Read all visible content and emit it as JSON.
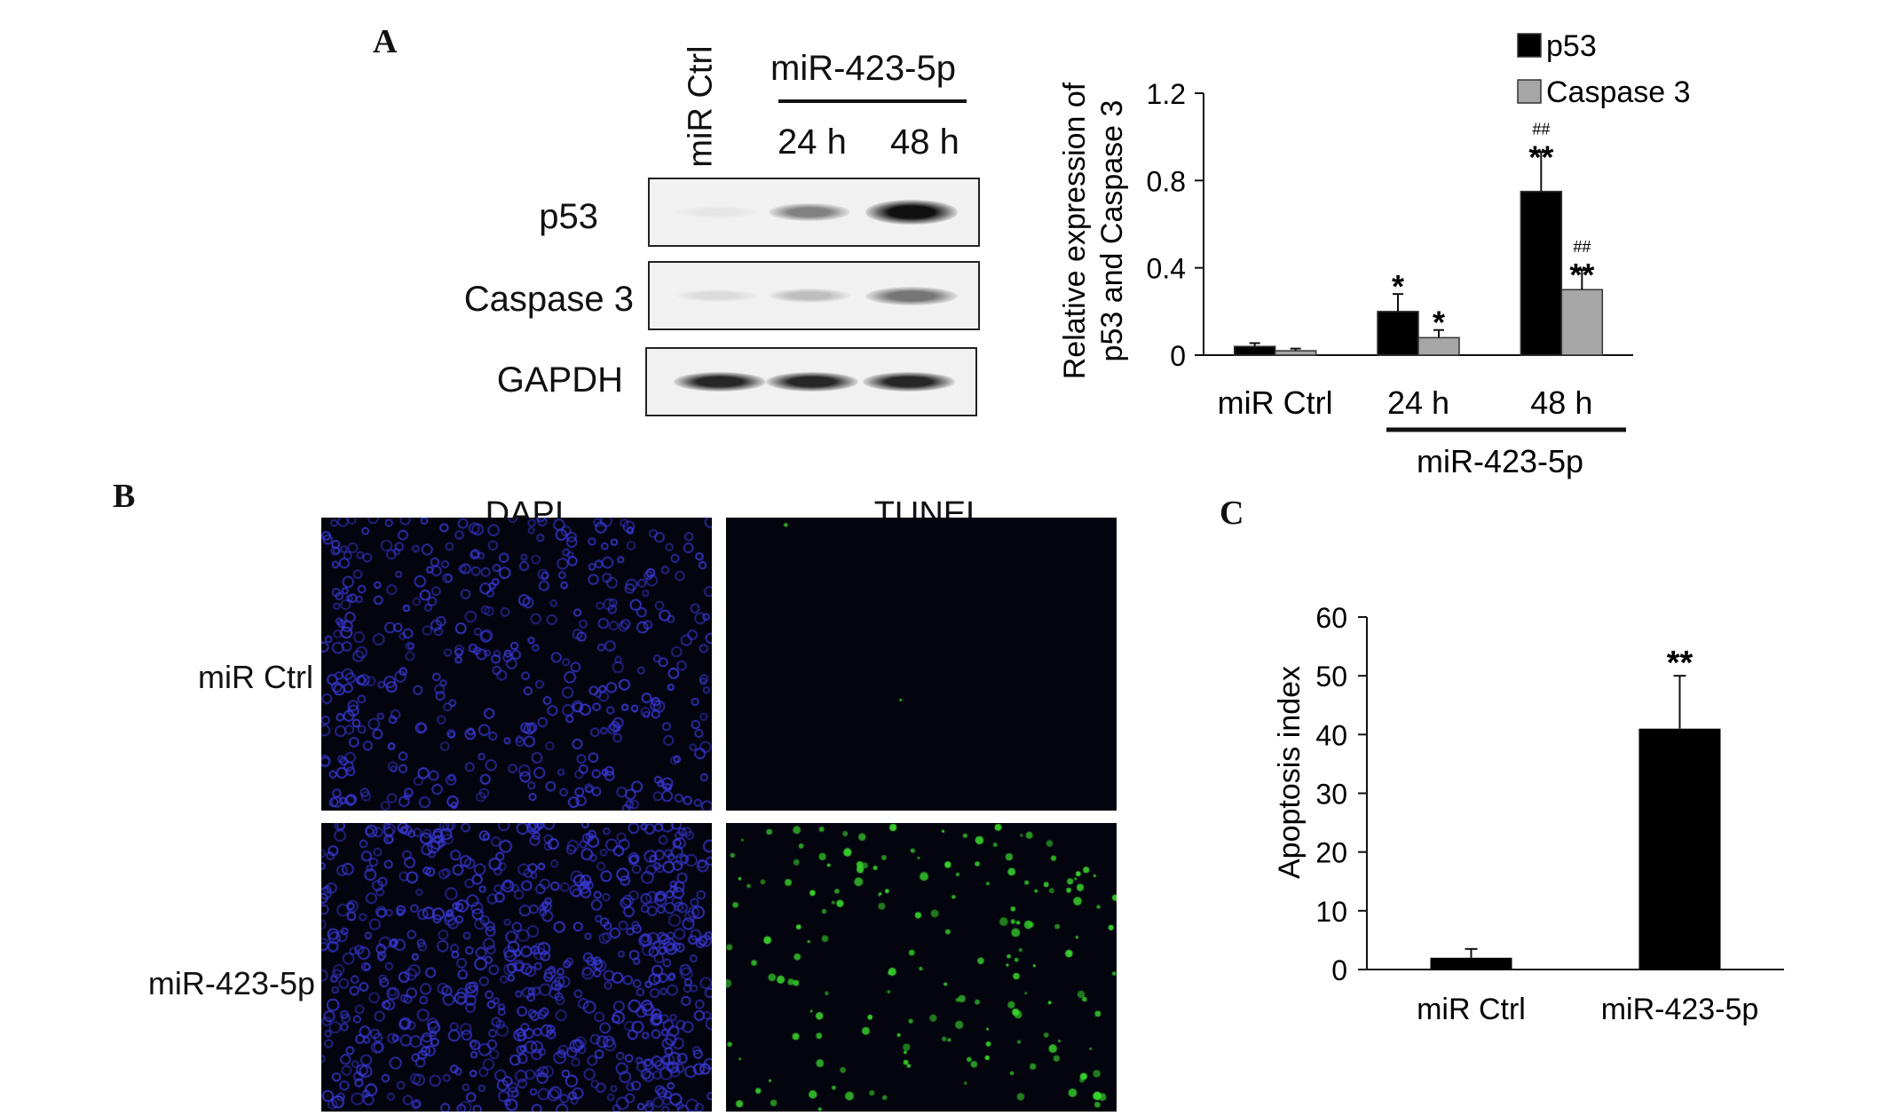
{
  "panels": {
    "a": {
      "letter": "A",
      "blot": {
        "lane_ctrl": "miR Ctrl",
        "group_label": "miR-423-5p",
        "lane_24h": "24 h",
        "lane_48h": "48 h",
        "rows": [
          {
            "label": "p53",
            "intensities": [
              0.0,
              0.45,
              0.95
            ]
          },
          {
            "label": "Caspase 3",
            "intensities": [
              0.05,
              0.18,
              0.5
            ]
          },
          {
            "label": "GAPDH",
            "intensities": [
              0.85,
              0.85,
              0.85
            ]
          }
        ]
      }
    },
    "b": {
      "letter": "B",
      "col_dapi": "DAPI",
      "col_tunel": "TUNEL",
      "row_ctrl": "miR Ctrl",
      "row_mir": "miR-423-5p",
      "colors": {
        "dapi": "#3a3ad8",
        "tunel": "#39d62e",
        "background": "#04040e"
      }
    },
    "c": {
      "letter": "C"
    }
  },
  "chart_data": [
    {
      "type": "bar",
      "categories": [
        "miR Ctrl",
        "24 h",
        "48 h"
      ],
      "group_label": "miR-423-5p",
      "ylabel": "Relative expression of p53 and Caspase 3",
      "ylim": [
        0,
        1.2
      ],
      "yticks": [
        "0",
        "0.4",
        "0.8",
        "1.2"
      ],
      "legend": "top-right",
      "series": [
        {
          "name": "p53",
          "color": "#000000",
          "values": [
            0.04,
            0.2,
            0.75
          ],
          "errors": [
            0.015,
            0.08,
            0.18
          ],
          "annotations": [
            "",
            "*",
            "**"
          ],
          "hash": [
            "",
            "",
            "##"
          ]
        },
        {
          "name": "Caspase 3",
          "color": "#a6a6a6",
          "values": [
            0.02,
            0.08,
            0.3
          ],
          "errors": [
            0.01,
            0.035,
            0.09
          ],
          "annotations": [
            "",
            "*",
            "**"
          ],
          "hash": [
            "",
            "",
            "##"
          ]
        }
      ]
    },
    {
      "type": "bar",
      "categories": [
        "miR Ctrl",
        "miR-423-5p"
      ],
      "ylabel": "Apoptosis index",
      "ylim": [
        0,
        60
      ],
      "yticks": [
        "0",
        "10",
        "20",
        "30",
        "40",
        "50",
        "60"
      ],
      "values": [
        2,
        41
      ],
      "errors": [
        1.5,
        9
      ],
      "annotations": [
        "",
        "**"
      ],
      "color": "#000000"
    }
  ]
}
